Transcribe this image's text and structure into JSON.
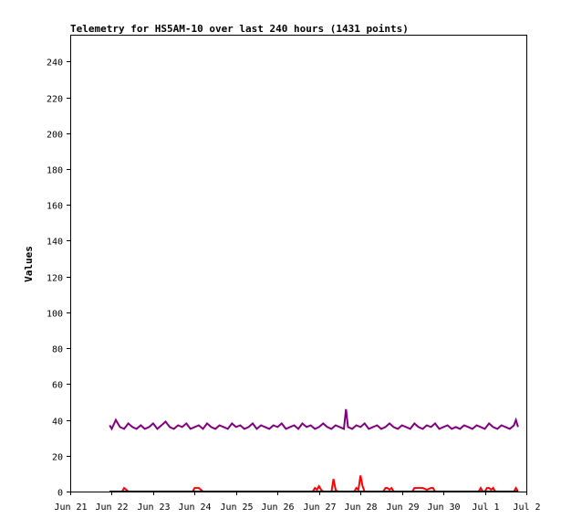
{
  "chart_data": {
    "type": "line",
    "title": "Telemetry for HS5AM-10 over last 240 hours (1431 points)",
    "xlabel": "",
    "ylabel": "Values",
    "ylim": [
      0,
      255
    ],
    "yticks": [
      0,
      20,
      40,
      60,
      80,
      100,
      120,
      140,
      160,
      180,
      200,
      220,
      240
    ],
    "xticks": [
      "Jun 21",
      "Jun 22",
      "Jun 23",
      "Jun 24",
      "Jun 25",
      "Jun 26",
      "Jun 27",
      "Jun 28",
      "Jun 29",
      "Jun 30",
      "Jul 1",
      "Jul 2"
    ],
    "xlim_days": [
      0,
      11
    ],
    "grid": false,
    "legend": "none",
    "series": [
      {
        "color": "#800080",
        "x_days": [
          0.95,
          1.0,
          1.1,
          1.2,
          1.3,
          1.4,
          1.5,
          1.6,
          1.7,
          1.8,
          1.9,
          2.0,
          2.1,
          2.2,
          2.3,
          2.4,
          2.5,
          2.6,
          2.7,
          2.8,
          2.9,
          3.0,
          3.1,
          3.2,
          3.3,
          3.4,
          3.5,
          3.6,
          3.7,
          3.8,
          3.9,
          4.0,
          4.1,
          4.2,
          4.3,
          4.4,
          4.5,
          4.6,
          4.7,
          4.8,
          4.9,
          5.0,
          5.1,
          5.2,
          5.3,
          5.4,
          5.5,
          5.6,
          5.7,
          5.8,
          5.9,
          6.0,
          6.1,
          6.2,
          6.3,
          6.4,
          6.5,
          6.6,
          6.65,
          6.7,
          6.8,
          6.9,
          7.0,
          7.1,
          7.2,
          7.3,
          7.4,
          7.5,
          7.6,
          7.7,
          7.8,
          7.9,
          8.0,
          8.1,
          8.2,
          8.3,
          8.4,
          8.5,
          8.6,
          8.7,
          8.8,
          8.9,
          9.0,
          9.1,
          9.2,
          9.3,
          9.4,
          9.5,
          9.6,
          9.7,
          9.8,
          9.9,
          10.0,
          10.1,
          10.2,
          10.3,
          10.4,
          10.5,
          10.6,
          10.7,
          10.75,
          10.8
        ],
        "values": [
          37,
          35,
          40,
          36,
          35,
          38,
          36,
          35,
          37,
          35,
          36,
          38,
          35,
          37,
          39,
          36,
          35,
          37,
          36,
          38,
          35,
          36,
          37,
          35,
          38,
          36,
          35,
          37,
          36,
          35,
          38,
          36,
          37,
          35,
          36,
          38,
          35,
          37,
          36,
          35,
          37,
          36,
          38,
          35,
          36,
          37,
          35,
          38,
          36,
          37,
          35,
          36,
          38,
          36,
          35,
          37,
          36,
          35,
          46,
          36,
          35,
          37,
          36,
          38,
          35,
          36,
          37,
          35,
          36,
          38,
          36,
          35,
          37,
          36,
          35,
          38,
          36,
          35,
          37,
          36,
          38,
          35,
          36,
          37,
          35,
          36,
          35,
          37,
          36,
          35,
          37,
          36,
          35,
          38,
          36,
          35,
          37,
          36,
          35,
          37,
          40,
          36
        ]
      },
      {
        "color": "#ff0000",
        "x_days": [
          0.95,
          1.25,
          1.3,
          1.35,
          1.4,
          2.95,
          3.0,
          3.05,
          3.1,
          3.15,
          3.2,
          3.25,
          5.85,
          5.9,
          5.95,
          6.0,
          6.05,
          6.1,
          6.3,
          6.35,
          6.4,
          6.45,
          6.85,
          6.9,
          6.95,
          7.0,
          7.05,
          7.1,
          7.15,
          7.55,
          7.6,
          7.65,
          7.7,
          7.75,
          7.8,
          8.25,
          8.3,
          8.4,
          8.5,
          8.6,
          8.7,
          8.75,
          8.8,
          9.85,
          9.9,
          9.95,
          10.0,
          10.05,
          10.1,
          10.15,
          10.2,
          10.25,
          10.7,
          10.75,
          10.8
        ],
        "values": [
          0,
          0,
          2,
          1,
          0,
          0,
          2,
          2,
          2,
          1,
          0,
          0,
          0,
          2,
          1,
          3,
          1,
          0,
          0,
          7,
          1,
          0,
          0,
          2,
          1,
          9,
          3,
          0,
          0,
          0,
          2,
          2,
          1,
          2,
          0,
          0,
          2,
          2,
          2,
          1,
          2,
          2,
          0,
          0,
          2,
          0,
          0,
          2,
          2,
          1,
          2,
          0,
          0,
          2,
          0
        ]
      },
      {
        "color": "#000000",
        "x_days": [
          0.95,
          10.8
        ],
        "values": [
          0,
          0
        ]
      }
    ]
  }
}
